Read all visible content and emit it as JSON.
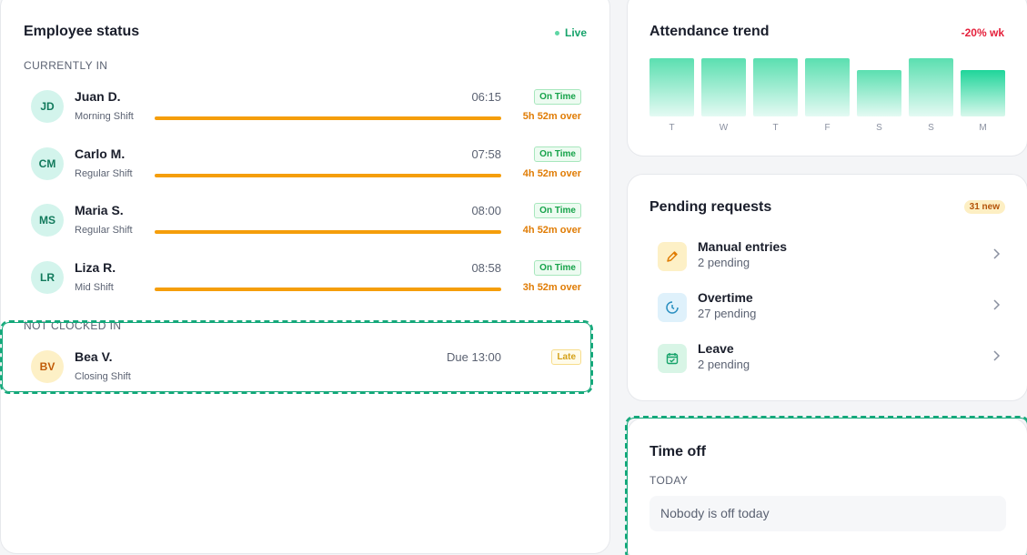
{
  "employee_status": {
    "title": "Employee status",
    "live_label": "Live",
    "currently_in_label": "CURRENTLY IN",
    "not_clocked_in_label": "NOT CLOCKED IN",
    "currently_in": [
      {
        "initials": "JD",
        "name": "Juan D.",
        "shift": "Morning Shift",
        "time": "06:15",
        "status": "On Time",
        "overtime": "5h 52m over"
      },
      {
        "initials": "CM",
        "name": "Carlo M.",
        "shift": "Regular Shift",
        "time": "07:58",
        "status": "On Time",
        "overtime": "4h 52m over"
      },
      {
        "initials": "MS",
        "name": "Maria S.",
        "shift": "Regular Shift",
        "time": "08:00",
        "status": "On Time",
        "overtime": "4h 52m over"
      },
      {
        "initials": "LR",
        "name": "Liza R.",
        "shift": "Mid Shift",
        "time": "08:58",
        "status": "On Time",
        "overtime": "3h 52m over"
      }
    ],
    "not_clocked_in": [
      {
        "initials": "BV",
        "name": "Bea V.",
        "shift": "Closing Shift",
        "time": "Due 13:00",
        "status": "Late"
      }
    ]
  },
  "attendance_trend": {
    "title": "Attendance trend",
    "change": "-20% wk",
    "days": [
      "T",
      "W",
      "T",
      "F",
      "S",
      "S",
      "M"
    ],
    "levels": [
      1.0,
      1.0,
      1.0,
      1.0,
      0.8,
      1.0,
      0.8
    ]
  },
  "pending_requests": {
    "title": "Pending requests",
    "badge": "31 new",
    "items": [
      {
        "title": "Manual entries",
        "subtitle": "2 pending",
        "icon": "pencil-icon"
      },
      {
        "title": "Overtime",
        "subtitle": "27 pending",
        "icon": "clock-icon"
      },
      {
        "title": "Leave",
        "subtitle": "2 pending",
        "icon": "calendar-check-icon"
      }
    ]
  },
  "time_off": {
    "title": "Time off",
    "today_label": "TODAY",
    "empty_text": "Nobody is off today"
  },
  "colors": {
    "accent": "#14a87a",
    "overtime": "#f59e0b",
    "negative": "#e5213c"
  }
}
